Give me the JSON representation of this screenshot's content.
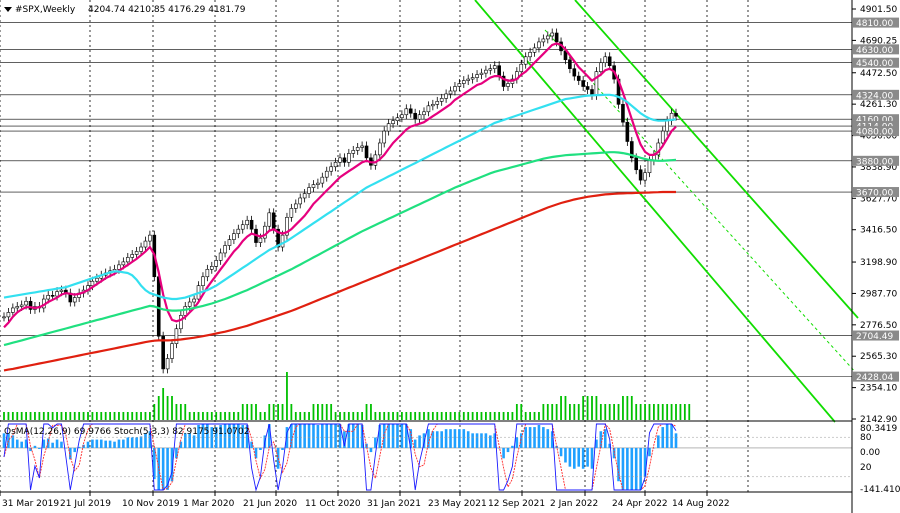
{
  "header": {
    "symbol": "#SPX,Weekly",
    "ohlc": "4204.74 4210.85 4176.29 4181.79",
    "menu_icon": "triangle-down-icon"
  },
  "colors": {
    "ema_fast": "#e6007e",
    "ema_mid": "#33e0f0",
    "ema_slow": "#20e080",
    "ema_long": "#e02010",
    "channel": "#11dd00",
    "volume": "#00c000",
    "candle": "#000000",
    "hline": "#000000",
    "osma_hist": "#1fa0ff",
    "stoch_main": "#1a1aff",
    "stoch_signal": "#ff2a2a"
  },
  "chart_data": {
    "type": "candlestick",
    "price_axis": {
      "ticks": [
        "4901.50",
        "4690.25",
        "4472.50",
        "4261.30",
        "4050.00",
        "3838.90",
        "3627.70",
        "3416.50",
        "3198.90",
        "2987.70",
        "2776.50",
        "2565.30",
        "2354.10",
        "2142.90"
      ],
      "ylim": [
        2142.9,
        4901.5
      ]
    },
    "level_labels": [
      "4810.00",
      "4630.00",
      "4540.00",
      "4324.00",
      "4160.00",
      "4114.00",
      "4080.00",
      "3880.00",
      "3670.00",
      "2704.49",
      "2428.04"
    ],
    "x_labels": [
      "31 Mar 2019",
      "21 Jul 2019",
      "10 Nov 2019",
      "1 Mar 2020",
      "21 Jun 2020",
      "11 Oct 2020",
      "31 Jan 2021",
      "23 May 2021",
      "12 Sep 2021",
      "2 Jan 2022",
      "24 Apr 2022",
      "14 Aug 2022"
    ],
    "series": [
      {
        "name": "price",
        "values": [
          2830,
          2860,
          2890,
          2900,
          2910,
          2935,
          2880,
          2900,
          2890,
          2950,
          2975,
          2970,
          3000,
          3010,
          2990,
          2930,
          2960,
          2990,
          3010,
          3040,
          3070,
          3090,
          3110,
          3125,
          3140,
          3150,
          3180,
          3200,
          3230,
          3250,
          3270,
          3300,
          3340,
          3380,
          3100,
          2700,
          2480,
          2550,
          2650,
          2750,
          2840,
          2900,
          2930,
          2950,
          3040,
          3100,
          3150,
          3170,
          3210,
          3260,
          3310,
          3350,
          3390,
          3420,
          3450,
          3480,
          3420,
          3330,
          3360,
          3440,
          3530,
          3420,
          3300,
          3380,
          3500,
          3560,
          3590,
          3630,
          3660,
          3700,
          3720,
          3730,
          3770,
          3810,
          3840,
          3870,
          3900,
          3870,
          3930,
          3950,
          3970,
          3980,
          3900,
          3850,
          3920,
          4000,
          4080,
          4130,
          4150,
          4170,
          4190,
          4230,
          4200,
          4160,
          4190,
          4210,
          4250,
          4260,
          4280,
          4300,
          4330,
          4350,
          4380,
          4400,
          4420,
          4430,
          4440,
          4460,
          4470,
          4490,
          4500,
          4520,
          4450,
          4380,
          4400,
          4430,
          4480,
          4530,
          4580,
          4610,
          4640,
          4680,
          4700,
          4720,
          4740,
          4680,
          4620,
          4560,
          4500,
          4450,
          4420,
          4380,
          4360,
          4320,
          4480,
          4540,
          4580,
          4520,
          4430,
          4260,
          4140,
          4010,
          3900,
          3820,
          3750,
          3800,
          3880,
          3920,
          4000,
          4080,
          4150,
          4200,
          4180
        ]
      },
      {
        "name": "ema_fast",
        "values": [
          2760,
          2790,
          2830,
          2860,
          2880,
          2895,
          2895,
          2890,
          2895,
          2910,
          2930,
          2945,
          2960,
          2980,
          2990,
          2985,
          2980,
          2985,
          2995,
          3010,
          3030,
          3050,
          3070,
          3090,
          3105,
          3120,
          3140,
          3160,
          3180,
          3200,
          3220,
          3245,
          3270,
          3300,
          3250,
          3130,
          2980,
          2870,
          2810,
          2800,
          2810,
          2830,
          2860,
          2890,
          2930,
          2980,
          3030,
          3070,
          3110,
          3150,
          3190,
          3230,
          3270,
          3300,
          3340,
          3370,
          3390,
          3380,
          3370,
          3380,
          3410,
          3420,
          3400,
          3390,
          3400,
          3420,
          3450,
          3480,
          3510,
          3550,
          3590,
          3620,
          3650,
          3680,
          3710,
          3740,
          3770,
          3790,
          3810,
          3830,
          3850,
          3870,
          3880,
          3870,
          3870,
          3890,
          3920,
          3960,
          4000,
          4030,
          4060,
          4090,
          4110,
          4120,
          4130,
          4140,
          4160,
          4180,
          4200,
          4220,
          4240,
          4260,
          4290,
          4310,
          4330,
          4350,
          4370,
          4390,
          4400,
          4420,
          4440,
          4450,
          4450,
          4430,
          4420,
          4420,
          4430,
          4460,
          4480,
          4510,
          4540,
          4570,
          4600,
          4630,
          4660,
          4670,
          4660,
          4630,
          4590,
          4550,
          4510,
          4480,
          4450,
          4420,
          4440,
          4460,
          4490,
          4500,
          4480,
          4420,
          4340,
          4250,
          4160,
          4070,
          3990,
          3940,
          3920,
          3920,
          3940,
          3980,
          4030,
          4080,
          4110
        ]
      },
      {
        "name": "ema_mid",
        "values": [
          2960,
          2965,
          2970,
          2975,
          2980,
          2985,
          2990,
          2995,
          3000,
          3005,
          3010,
          3015,
          3020,
          3025,
          3030,
          3040,
          3050,
          3060,
          3070,
          3080,
          3090,
          3100,
          3110,
          3120,
          3130,
          3135,
          3135,
          3130,
          3125,
          3110,
          3080,
          3040,
          3010,
          2990,
          2980,
          2970,
          2960,
          2955,
          2950,
          2950,
          2955,
          2960,
          2970,
          2980,
          2990,
          3000,
          3010,
          3025,
          3040,
          3060,
          3080,
          3100,
          3120,
          3140,
          3160,
          3180,
          3200,
          3220,
          3240,
          3260,
          3280,
          3295,
          3310,
          3325,
          3340,
          3360,
          3380,
          3400,
          3420,
          3440,
          3460,
          3480,
          3500,
          3520,
          3540,
          3560,
          3580,
          3600,
          3620,
          3640,
          3660,
          3680,
          3700,
          3715,
          3730,
          3745,
          3760,
          3775,
          3790,
          3805,
          3820,
          3835,
          3850,
          3865,
          3880,
          3895,
          3910,
          3925,
          3940,
          3955,
          3970,
          3985,
          4000,
          4015,
          4030,
          4045,
          4060,
          4075,
          4090,
          4105,
          4120,
          4135,
          4145,
          4155,
          4165,
          4175,
          4185,
          4195,
          4205,
          4215,
          4225,
          4235,
          4245,
          4255,
          4265,
          4275,
          4285,
          4295,
          4300,
          4305,
          4310,
          4315,
          4318,
          4320,
          4322,
          4323,
          4324,
          4324,
          4320,
          4310,
          4295,
          4275,
          4250,
          4225,
          4200,
          4180,
          4165,
          4155,
          4150,
          4150,
          4152,
          4155,
          4160
        ]
      },
      {
        "name": "ema_slow",
        "values": [
          2640,
          2648,
          2656,
          2664,
          2672,
          2680,
          2688,
          2696,
          2704,
          2712,
          2720,
          2728,
          2736,
          2744,
          2752,
          2760,
          2768,
          2776,
          2784,
          2792,
          2800,
          2808,
          2816,
          2824,
          2832,
          2840,
          2848,
          2856,
          2864,
          2872,
          2880,
          2888,
          2896,
          2904,
          2900,
          2890,
          2880,
          2875,
          2872,
          2872,
          2874,
          2878,
          2884,
          2890,
          2897,
          2904,
          2912,
          2920,
          2930,
          2940,
          2950,
          2962,
          2974,
          2986,
          2998,
          3010,
          3024,
          3038,
          3052,
          3066,
          3080,
          3094,
          3108,
          3122,
          3136,
          3150,
          3166,
          3182,
          3198,
          3214,
          3230,
          3246,
          3262,
          3278,
          3294,
          3310,
          3326,
          3342,
          3358,
          3374,
          3390,
          3406,
          3420,
          3434,
          3448,
          3462,
          3476,
          3490,
          3504,
          3518,
          3532,
          3546,
          3560,
          3574,
          3588,
          3602,
          3616,
          3630,
          3644,
          3658,
          3672,
          3686,
          3700,
          3712,
          3724,
          3736,
          3748,
          3760,
          3772,
          3784,
          3796,
          3806,
          3814,
          3822,
          3830,
          3838,
          3846,
          3854,
          3862,
          3870,
          3878,
          3886,
          3894,
          3900,
          3906,
          3910,
          3914,
          3918,
          3920,
          3922,
          3924,
          3926,
          3928,
          3930,
          3932,
          3934,
          3936,
          3938,
          3938,
          3936,
          3932,
          3926,
          3918,
          3910,
          3900,
          3892,
          3886,
          3882,
          3880,
          3880,
          3882,
          3884,
          3886
        ]
      },
      {
        "name": "ema_long",
        "values": [
          2470,
          2475,
          2480,
          2486,
          2492,
          2498,
          2504,
          2510,
          2516,
          2522,
          2528,
          2534,
          2540,
          2546,
          2552,
          2558,
          2564,
          2570,
          2576,
          2582,
          2588,
          2594,
          2600,
          2606,
          2612,
          2618,
          2624,
          2630,
          2636,
          2642,
          2648,
          2654,
          2660,
          2666,
          2670,
          2672,
          2672,
          2672,
          2673,
          2675,
          2678,
          2682,
          2686,
          2690,
          2695,
          2700,
          2706,
          2712,
          2718,
          2724,
          2730,
          2738,
          2746,
          2754,
          2762,
          2770,
          2780,
          2790,
          2800,
          2810,
          2820,
          2830,
          2840,
          2850,
          2860,
          2870,
          2882,
          2894,
          2906,
          2918,
          2930,
          2942,
          2954,
          2966,
          2978,
          2990,
          3002,
          3014,
          3026,
          3038,
          3050,
          3062,
          3074,
          3086,
          3098,
          3110,
          3122,
          3134,
          3146,
          3158,
          3170,
          3182,
          3194,
          3206,
          3218,
          3230,
          3242,
          3254,
          3266,
          3278,
          3290,
          3302,
          3314,
          3326,
          3338,
          3350,
          3362,
          3374,
          3386,
          3398,
          3410,
          3422,
          3434,
          3446,
          3458,
          3470,
          3482,
          3494,
          3506,
          3518,
          3530,
          3542,
          3554,
          3566,
          3576,
          3586,
          3596,
          3604,
          3612,
          3620,
          3626,
          3632,
          3638,
          3642,
          3646,
          3650,
          3654,
          3656,
          3658,
          3660,
          3661,
          3662,
          3663,
          3664,
          3665,
          3666,
          3667,
          3668,
          3669,
          3670,
          3670,
          3670,
          3670
        ]
      }
    ],
    "volume": [
      1,
      1,
      1,
      1,
      1,
      1,
      1,
      1,
      1,
      1,
      1,
      1,
      1,
      1,
      1,
      1,
      1,
      1,
      1,
      1,
      1,
      1,
      1,
      1,
      1,
      1,
      1,
      1,
      1,
      1,
      1,
      1,
      1,
      1,
      2,
      3,
      4,
      3,
      3,
      2,
      2,
      2,
      1,
      1,
      1,
      1,
      1,
      1,
      1,
      1,
      1,
      1,
      1,
      1,
      2,
      2,
      2,
      2,
      1,
      1,
      2,
      2,
      2,
      2,
      6,
      2,
      1,
      1,
      1,
      1,
      2,
      2,
      2,
      2,
      2,
      1,
      1,
      1,
      1,
      1,
      1,
      1,
      2,
      2,
      1,
      1,
      1,
      1,
      1,
      1,
      1,
      1,
      1,
      1,
      1,
      1,
      1,
      1,
      1,
      1,
      1,
      1,
      1,
      1,
      1,
      1,
      1,
      1,
      1,
      1,
      1,
      1,
      1,
      1,
      1,
      1,
      2,
      2,
      1,
      1,
      1,
      1,
      2,
      2,
      2,
      2,
      3,
      3,
      2,
      2,
      2,
      3,
      3,
      3,
      3,
      2,
      2,
      2,
      2,
      2,
      3,
      3,
      3,
      2,
      2,
      2,
      2,
      2,
      2,
      2,
      2,
      2,
      2,
      2,
      2,
      2
    ],
    "indicator": {
      "title": "OsMA(12,26,9) 69.9766  Stoch(5,3,3) 82.9175 91.0702",
      "axis_ticks": [
        "80.3419",
        "80",
        "0.00",
        "20",
        "-141.4101"
      ]
    }
  }
}
